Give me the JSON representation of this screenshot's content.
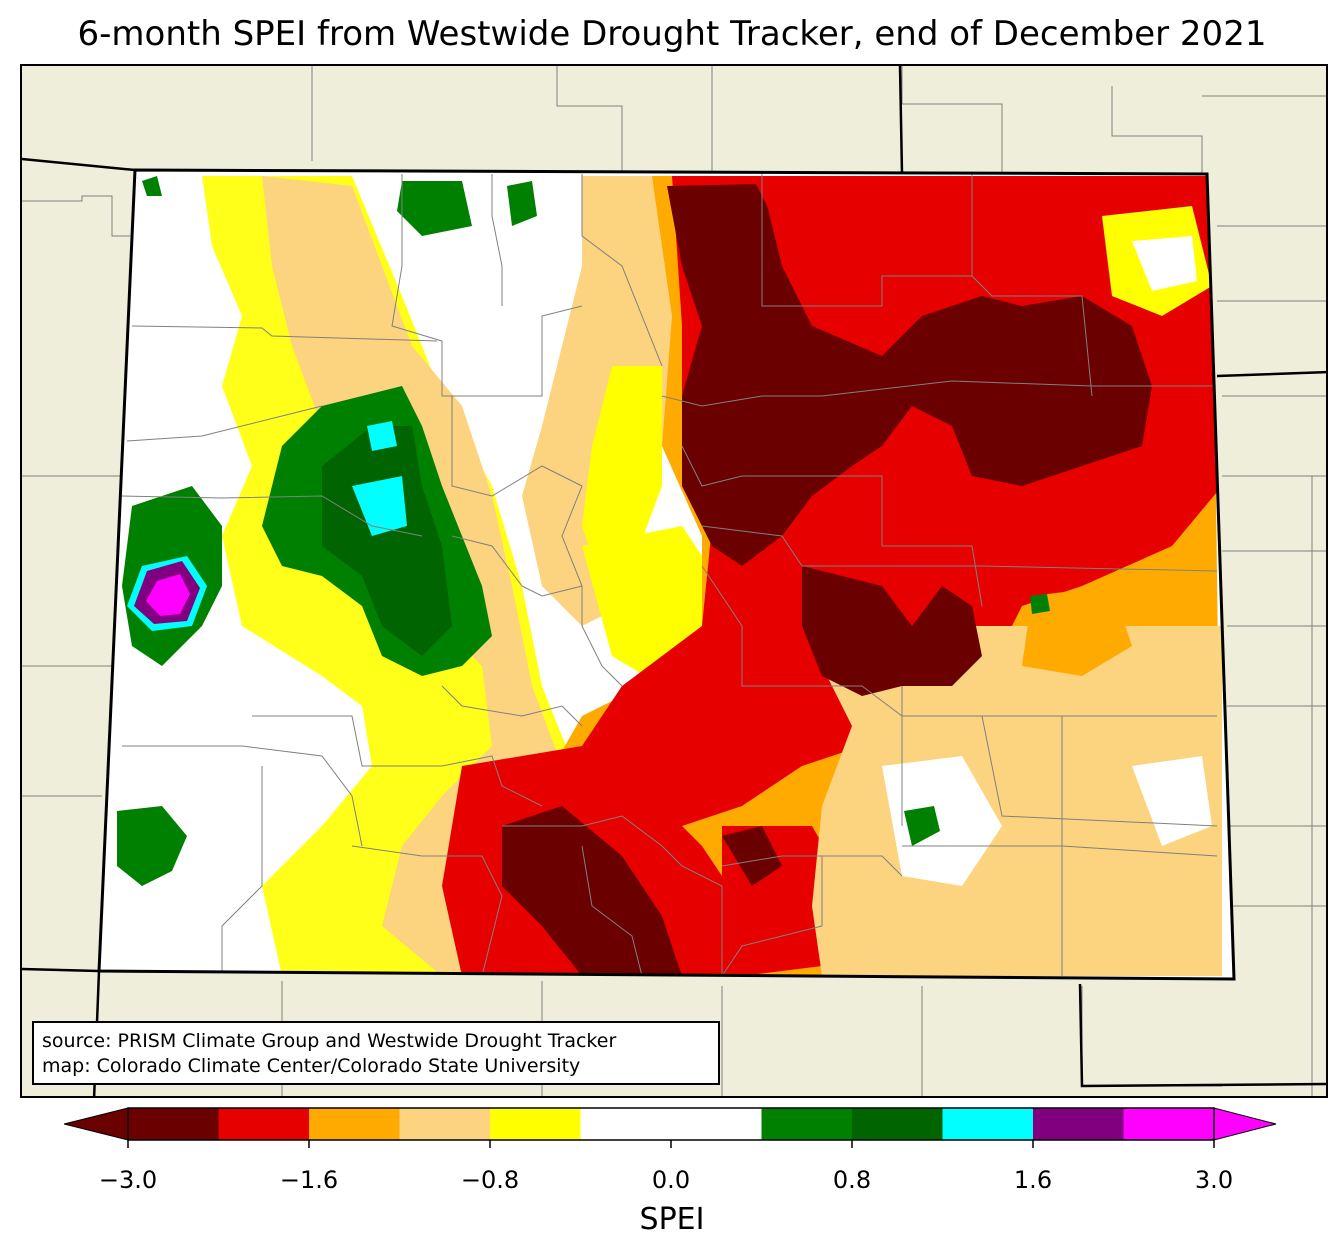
{
  "title": "6-month SPEI from Westwide Drought Tracker, end of December 2021",
  "source": {
    "line1": "source: PRISM Climate Group and Westwide Drought Tracker",
    "line2": "map: Colorado Climate Center/Colorado State University"
  },
  "colorbar": {
    "label": "SPEI",
    "ticks": [
      "−3.0",
      "−1.6",
      "−0.8",
      "0.0",
      "0.8",
      "1.6",
      "3.0"
    ],
    "bins": [
      {
        "color": "#6b0000"
      },
      {
        "color": "#e60000"
      },
      {
        "color": "#ffaa00"
      },
      {
        "color": "#fcd37f"
      },
      {
        "color": "#ffff00"
      },
      {
        "color": "#ffffff"
      },
      {
        "color": "#ffffff"
      },
      {
        "color": "#008000"
      },
      {
        "color": "#006400"
      },
      {
        "color": "#00ffff"
      },
      {
        "color": "#800080"
      },
      {
        "color": "#ff00ff"
      }
    ],
    "under_color": "#6b0000",
    "over_color": "#ff00ff"
  },
  "map": {
    "land_color": "#efeedb",
    "state_border_color": "#000000",
    "county_border_color": "#808080"
  }
}
